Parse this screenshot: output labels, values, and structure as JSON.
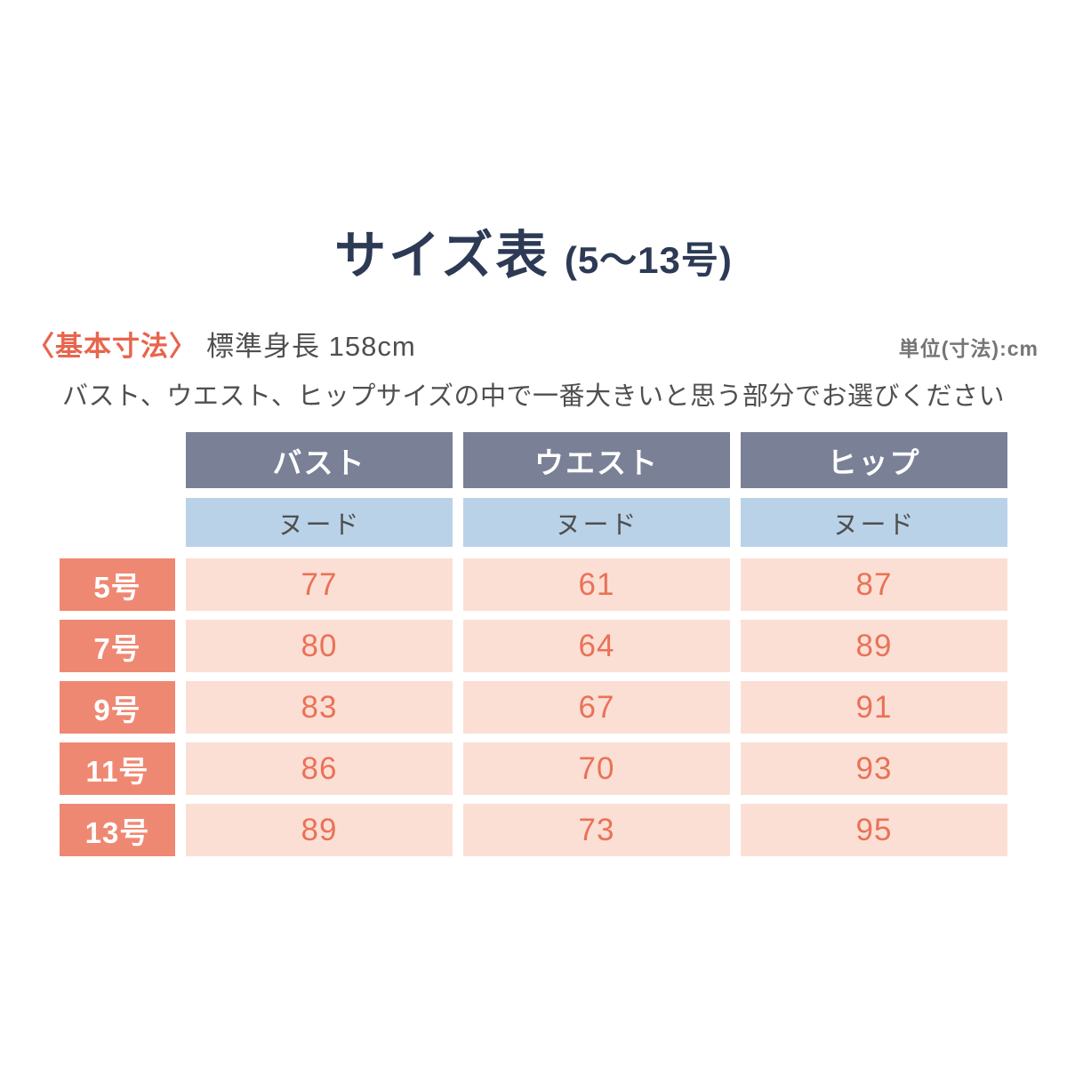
{
  "header": {
    "title": "サイズ表",
    "title_range": "(5〜13号)",
    "basic_dimensions_label": "〈基本寸法〉",
    "standard_height": "標準身長 158cm",
    "unit_label": "単位(寸法):cm",
    "instruction": "バスト、ウエスト、ヒップサイズの中で一番大きいと思う部分でお選びください"
  },
  "chart_data": {
    "type": "table",
    "title": "サイズ表(5〜13号)",
    "column_headers": [
      "バスト",
      "ウエスト",
      "ヒップ"
    ],
    "measurement_type_row": [
      "ヌード",
      "ヌード",
      "ヌード"
    ],
    "row_labels": [
      "5号",
      "7号",
      "9号",
      "11号",
      "13号"
    ],
    "rows": [
      [
        77,
        61,
        87
      ],
      [
        80,
        64,
        89
      ],
      [
        83,
        67,
        91
      ],
      [
        86,
        70,
        93
      ],
      [
        89,
        73,
        95
      ]
    ],
    "unit": "cm",
    "base_body_height_cm": 158
  },
  "colors": {
    "title_navy": "#2d3a55",
    "accent_coral": "#e8654e",
    "row_label_coral": "#ef8872",
    "cell_pink": "#fbdfd4",
    "value_coral": "#e97258",
    "header_gray_blue": "#7a8096",
    "subheader_blue": "#b9d2e8",
    "text_gray": "#4f4f4f",
    "unit_gray": "#757575"
  }
}
